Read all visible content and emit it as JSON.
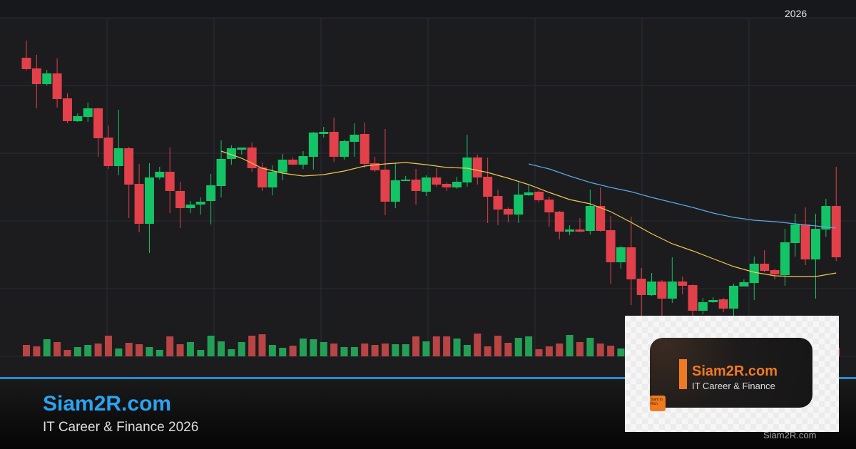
{
  "header": {
    "year_label": "2026"
  },
  "footer": {
    "brand": "Siam2R.com",
    "tagline": "IT Career & Finance 2026",
    "watermark": "Siam2R.com"
  },
  "logo": {
    "name": "Siam2R.com",
    "subtitle": "IT Career & Finance",
    "badge": "Siam to Rich"
  },
  "colors": {
    "background": "#1c1c1e",
    "up": "#13c466",
    "down": "#e2404a",
    "volume_up": "#23a055",
    "volume_down": "#b84444",
    "ma_short": "#f2c94c",
    "ma_long": "#5aa9e6",
    "accent": "#1e8fd6",
    "brand": "#29a3f0",
    "logo_orange": "#f07a1f"
  },
  "chart_data": {
    "type": "candlestick",
    "title": "",
    "grid": true,
    "ylim": [
      100,
      575
    ],
    "candles_ohlc": [
      [
        519,
        543,
        501,
        503
      ],
      [
        504,
        523,
        448,
        482
      ],
      [
        482,
        502,
        480,
        497
      ],
      [
        497,
        518,
        449,
        461
      ],
      [
        462,
        469,
        427,
        430
      ],
      [
        430,
        441,
        429,
        437
      ],
      [
        436,
        456,
        429,
        448
      ],
      [
        448,
        449,
        380,
        406
      ],
      [
        407,
        424,
        363,
        367
      ],
      [
        367,
        446,
        354,
        392
      ],
      [
        392,
        394,
        294,
        341
      ],
      [
        342,
        370,
        274,
        286
      ],
      [
        286,
        371,
        245,
        351
      ],
      [
        351,
        366,
        348,
        359
      ],
      [
        359,
        393,
        301,
        332
      ],
      [
        332,
        345,
        280,
        308
      ],
      [
        308,
        318,
        301,
        313
      ],
      [
        313,
        323,
        299,
        317
      ],
      [
        318,
        356,
        285,
        340
      ],
      [
        339,
        403,
        323,
        377
      ],
      [
        377,
        396,
        369,
        392
      ],
      [
        390,
        393,
        383,
        393
      ],
      [
        393,
        400,
        359,
        364
      ],
      [
        365,
        372,
        332,
        337
      ],
      [
        337,
        368,
        326,
        359
      ],
      [
        358,
        384,
        347,
        376
      ],
      [
        376,
        379,
        368,
        369
      ],
      [
        369,
        388,
        363,
        381
      ],
      [
        380,
        415,
        362,
        414
      ],
      [
        412,
        422,
        407,
        415
      ],
      [
        415,
        435,
        373,
        380
      ],
      [
        380,
        404,
        376,
        402
      ],
      [
        401,
        427,
        380,
        411
      ],
      [
        412,
        428,
        364,
        370
      ],
      [
        371,
        380,
        359,
        361
      ],
      [
        362,
        419,
        298,
        317
      ],
      [
        317,
        372,
        308,
        347
      ],
      [
        346,
        353,
        346,
        348
      ],
      [
        348,
        363,
        313,
        332
      ],
      [
        331,
        354,
        325,
        351
      ],
      [
        351,
        364,
        338,
        341
      ],
      [
        342,
        344,
        332,
        337
      ],
      [
        337,
        352,
        335,
        345
      ],
      [
        344,
        411,
        338,
        379
      ],
      [
        379,
        383,
        341,
        351
      ],
      [
        352,
        379,
        287,
        324
      ],
      [
        325,
        334,
        284,
        306
      ],
      [
        307,
        309,
        288,
        299
      ],
      [
        299,
        344,
        287,
        327
      ],
      [
        326,
        340,
        325,
        330
      ],
      [
        331,
        333,
        316,
        319
      ],
      [
        320,
        324,
        282,
        302
      ],
      [
        303,
        304,
        264,
        275
      ],
      [
        275,
        284,
        270,
        278
      ],
      [
        278,
        294,
        274,
        275
      ],
      [
        276,
        334,
        271,
        311
      ],
      [
        311,
        337,
        275,
        276
      ],
      [
        277,
        297,
        202,
        232
      ],
      [
        232,
        255,
        223,
        253
      ],
      [
        253,
        296,
        172,
        208
      ],
      [
        209,
        224,
        155,
        186
      ],
      [
        186,
        217,
        185,
        205
      ],
      [
        205,
        207,
        155,
        181
      ],
      [
        181,
        239,
        175,
        205
      ],
      [
        205,
        212,
        187,
        199
      ],
      [
        200,
        201,
        157,
        164
      ],
      [
        164,
        182,
        159,
        176
      ],
      [
        176,
        183,
        175,
        179
      ],
      [
        180,
        182,
        162,
        167
      ],
      [
        167,
        202,
        157,
        199
      ],
      [
        198,
        208,
        198,
        204
      ],
      [
        203,
        240,
        179,
        230
      ],
      [
        230,
        249,
        218,
        220
      ],
      [
        221,
        223,
        208,
        215
      ],
      [
        214,
        279,
        199,
        260
      ],
      [
        259,
        300,
        240,
        285
      ],
      [
        285,
        309,
        228,
        236
      ],
      [
        236,
        300,
        181,
        279
      ],
      [
        278,
        321,
        268,
        311
      ],
      [
        311,
        366,
        234,
        239
      ]
    ],
    "volume": [
      160,
      140,
      240,
      200,
      90,
      130,
      160,
      180,
      290,
      110,
      190,
      170,
      130,
      90,
      280,
      170,
      200,
      90,
      290,
      210,
      100,
      200,
      290,
      310,
      160,
      120,
      150,
      250,
      240,
      200,
      180,
      130,
      130,
      180,
      160,
      180,
      170,
      170,
      280,
      210,
      280,
      280,
      250,
      160,
      320,
      140,
      290,
      190,
      260,
      280,
      100,
      140,
      180,
      300,
      200,
      260,
      180,
      150,
      110,
      null,
      null,
      null,
      null,
      null,
      null,
      null,
      null,
      null,
      null,
      null,
      null,
      null,
      null,
      null,
      null,
      null,
      null,
      null,
      null,
      120
    ],
    "ma_short": [
      [
        20,
        388
      ],
      [
        22,
        378
      ],
      [
        24,
        364
      ],
      [
        26,
        357
      ],
      [
        28,
        353
      ],
      [
        30,
        355
      ],
      [
        32,
        360
      ],
      [
        34,
        367
      ],
      [
        36,
        370
      ],
      [
        38,
        372
      ],
      [
        40,
        369
      ],
      [
        42,
        365
      ],
      [
        44,
        364
      ],
      [
        46,
        358
      ],
      [
        48,
        350
      ],
      [
        50,
        341
      ],
      [
        52,
        330
      ],
      [
        54,
        320
      ],
      [
        56,
        314
      ],
      [
        58,
        303
      ],
      [
        60,
        288
      ],
      [
        62,
        272
      ],
      [
        64,
        258
      ],
      [
        66,
        248
      ],
      [
        68,
        237
      ],
      [
        70,
        226
      ],
      [
        72,
        218
      ],
      [
        74,
        213
      ],
      [
        76,
        212
      ],
      [
        78,
        212
      ],
      [
        80,
        217
      ]
    ],
    "ma_long": [
      [
        50,
        370
      ],
      [
        52,
        363
      ],
      [
        54,
        353
      ],
      [
        56,
        344
      ],
      [
        58,
        337
      ],
      [
        60,
        331
      ],
      [
        62,
        323
      ],
      [
        64,
        316
      ],
      [
        66,
        309
      ],
      [
        68,
        301
      ],
      [
        70,
        295
      ],
      [
        72,
        291
      ],
      [
        74,
        289
      ],
      [
        76,
        286
      ],
      [
        78,
        283
      ],
      [
        80,
        280
      ]
    ]
  }
}
